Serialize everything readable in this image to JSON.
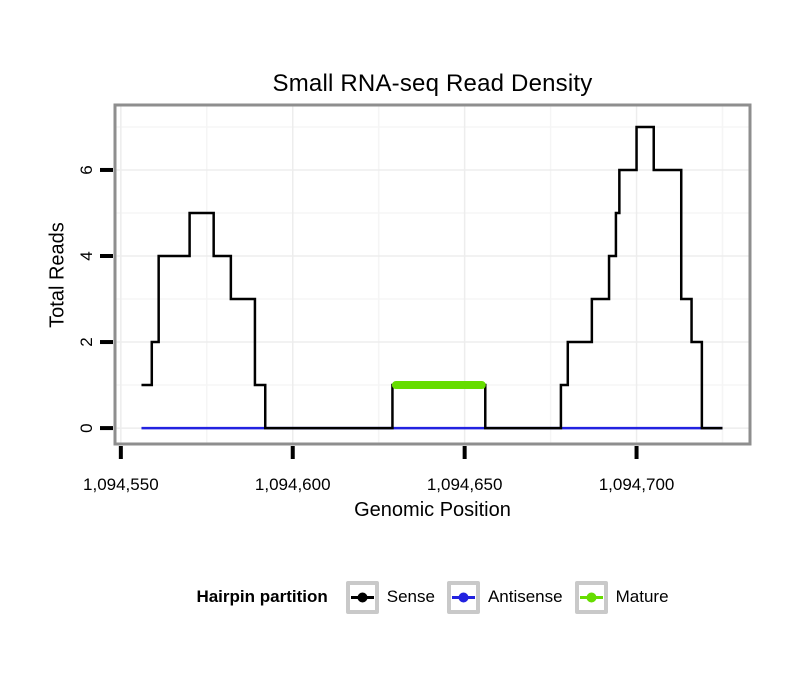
{
  "figure": {
    "background": "#ffffff"
  },
  "chart_data": {
    "type": "line",
    "subtype": "step-density",
    "title": "Small RNA-seq Read Density",
    "xlabel": "Genomic Position",
    "ylabel": "Total Reads",
    "x_domain": [
      1094548.3,
      1094733.0
    ],
    "y_domain": [
      -0.37,
      7.51
    ],
    "grid": true,
    "x_ticks": [
      {
        "value": 1094550,
        "label": "1,094,550"
      },
      {
        "value": 1094600,
        "label": "1,094,600"
      },
      {
        "value": 1094650,
        "label": "1,094,650"
      },
      {
        "value": 1094700,
        "label": "1,094,700"
      }
    ],
    "y_ticks": [
      {
        "value": 0,
        "label": "0"
      },
      {
        "value": 2,
        "label": "2"
      },
      {
        "value": 4,
        "label": "4"
      },
      {
        "value": 6,
        "label": "6"
      }
    ],
    "x_minor_ticks": [
      1094575,
      1094625,
      1094675,
      1094725
    ],
    "y_minor_ticks": [
      1,
      3,
      5,
      7
    ],
    "series": [
      {
        "name": "Antisense",
        "type": "step",
        "color": "#2222e0",
        "line_width": 2.5,
        "steps": [
          [
            1094556,
            0
          ]
        ],
        "end": 1094725
      },
      {
        "name": "Sense",
        "type": "step",
        "color": "#000000",
        "line_width": 2.5,
        "steps": [
          [
            1094556,
            1
          ],
          [
            1094559,
            2
          ],
          [
            1094561,
            4
          ],
          [
            1094570,
            5
          ],
          [
            1094577,
            4
          ],
          [
            1094582,
            3
          ],
          [
            1094589,
            1
          ],
          [
            1094592,
            0
          ],
          [
            1094629,
            1
          ],
          [
            1094656,
            0
          ],
          [
            1094678,
            1
          ],
          [
            1094680,
            2
          ],
          [
            1094687,
            3
          ],
          [
            1094692,
            4
          ],
          [
            1094694,
            5
          ],
          [
            1094695,
            6
          ],
          [
            1094700,
            7
          ],
          [
            1094705,
            6
          ],
          [
            1094713,
            3
          ],
          [
            1094716,
            2
          ],
          [
            1094719,
            0
          ]
        ],
        "end": 1094725
      },
      {
        "name": "Mature",
        "type": "segment",
        "color": "#66dd00",
        "line_width": 8,
        "y": 1,
        "x1": 1094630,
        "x2": 1094655
      }
    ],
    "legend": {
      "title": "Hairpin partition",
      "position": "bottom",
      "entries": [
        {
          "label": "Sense",
          "color": "#000000"
        },
        {
          "label": "Antisense",
          "color": "#2222e0"
        },
        {
          "label": "Mature",
          "color": "#66dd00"
        }
      ]
    }
  },
  "styles": {
    "panel_border": "#8e8e8e",
    "grid_major": "#ededed",
    "grid_minor": "#f5f5f5",
    "tick_color": "#000000",
    "text_color": "#000000",
    "legend_key_border": "#c9c9c9"
  }
}
